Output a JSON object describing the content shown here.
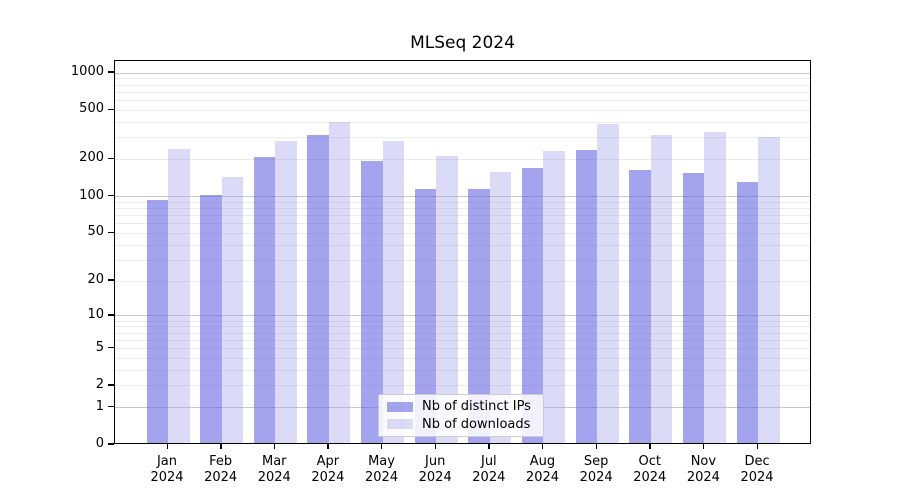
{
  "title": "MLSeq 2024",
  "legend": {
    "items": [
      {
        "label": "Nb of distinct IPs",
        "swatch": "distinct-ips"
      },
      {
        "label": "Nb of downloads",
        "swatch": "downloads"
      }
    ]
  },
  "colors": {
    "bar_distinct_ips": "rgba(98,98,226,0.58)",
    "bar_downloads": "rgba(152,152,235,0.35)",
    "grid_major": "#c9c9c9",
    "grid_minor": "#ebebeb",
    "axis": "#000000"
  },
  "chart_data": {
    "type": "bar",
    "title": "MLSeq 2024",
    "categories": [
      "Jan",
      "Feb",
      "Mar",
      "Apr",
      "May",
      "Jun",
      "Jul",
      "Aug",
      "Sep",
      "Oct",
      "Nov",
      "Dec"
    ],
    "year_label": "2024",
    "series": [
      {
        "name": "Nb of distinct IPs",
        "values": [
          90,
          100,
          202,
          305,
          188,
          110,
          110,
          165,
          230,
          159,
          150,
          127
        ]
      },
      {
        "name": "Nb of downloads",
        "values": [
          233,
          140,
          270,
          385,
          270,
          205,
          153,
          227,
          374,
          303,
          321,
          293
        ]
      }
    ],
    "yscale": "log1p",
    "yticks": [
      0,
      1,
      2,
      5,
      10,
      20,
      50,
      100,
      200,
      500,
      1000
    ],
    "ylim": [
      0,
      1275
    ],
    "grid": true,
    "legend_position": "lower-center"
  }
}
